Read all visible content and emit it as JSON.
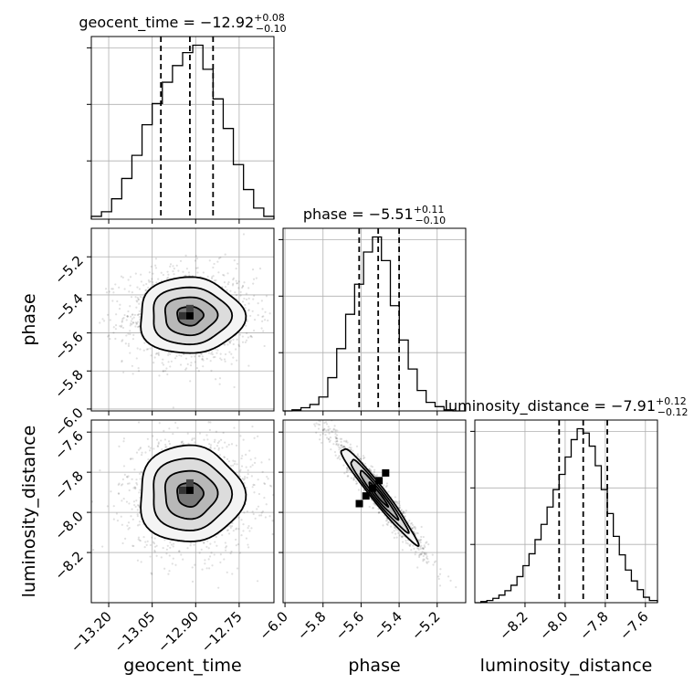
{
  "chart_data": {
    "type": "corner",
    "grid": true,
    "parameters": [
      {
        "key": "geocent_time",
        "label": "geocent_time",
        "title": {
          "prefix": "geocent_time = −12.92",
          "plus": "+0.08",
          "minus": "−0.10"
        },
        "range": [
          -13.26,
          -12.63
        ],
        "ticks": [
          -13.2,
          -13.05,
          -12.9,
          -12.75
        ],
        "tick_labels": [
          "−13.20",
          "−13.05",
          "−12.90",
          "−12.75"
        ],
        "quantiles": [
          -13.02,
          -12.92,
          -12.84
        ],
        "hist_edges": [
          -13.26,
          -13.225,
          -13.19,
          -13.155,
          -13.12,
          -13.085,
          -13.05,
          -13.015,
          -12.98,
          -12.945,
          -12.91,
          -12.875,
          -12.84,
          -12.805,
          -12.77,
          -12.735,
          -12.7,
          -12.665,
          -12.63
        ],
        "hist_counts": [
          3,
          8,
          22,
          44,
          69,
          102,
          125,
          148,
          166,
          180,
          188,
          162,
          130,
          98,
          59,
          32,
          12,
          3
        ]
      },
      {
        "key": "phase",
        "label": "phase",
        "title": {
          "prefix": "phase = −5.51",
          "plus": "+0.11",
          "minus": "−0.10"
        },
        "range": [
          -6.01,
          -5.05
        ],
        "ticks": [
          -6.0,
          -5.8,
          -5.6,
          -5.4,
          -5.2
        ],
        "tick_labels": [
          "−6.0",
          "−5.8",
          "−5.6",
          "−5.4",
          "−5.2"
        ],
        "quantiles": [
          -5.61,
          -5.51,
          -5.4
        ],
        "hist_edges": [
          -6.01,
          -5.963,
          -5.916,
          -5.869,
          -5.822,
          -5.775,
          -5.728,
          -5.681,
          -5.634,
          -5.587,
          -5.54,
          -5.493,
          -5.446,
          -5.399,
          -5.352,
          -5.305,
          -5.258,
          -5.211,
          -5.164,
          -5.117,
          -5.05
        ],
        "hist_counts": [
          0,
          1,
          3,
          6,
          13,
          31,
          58,
          90,
          118,
          148,
          162,
          140,
          98,
          66,
          39,
          19,
          8,
          4,
          1,
          0
        ]
      },
      {
        "key": "luminosity_distance",
        "label": "luminosity_distance",
        "title": {
          "prefix": "luminosity_distance = −7.91",
          "plus": "+0.12",
          "minus": "−0.12"
        },
        "range": [
          -8.45,
          -7.54
        ],
        "ticks": [
          -8.2,
          -8.0,
          -7.8,
          -7.6
        ],
        "tick_labels": [
          "−8.2",
          "−8.0",
          "−7.8",
          "−7.6"
        ],
        "quantiles": [
          -8.03,
          -7.91,
          -7.79
        ],
        "hist_edges": [
          -8.45,
          -8.42,
          -8.39,
          -8.36,
          -8.33,
          -8.3,
          -8.27,
          -8.24,
          -8.21,
          -8.18,
          -8.15,
          -8.12,
          -8.09,
          -8.06,
          -8.03,
          -8.0,
          -7.97,
          -7.94,
          -7.91,
          -7.88,
          -7.85,
          -7.82,
          -7.79,
          -7.76,
          -7.73,
          -7.7,
          -7.67,
          -7.64,
          -7.61,
          -7.58,
          -7.54
        ],
        "hist_counts": [
          0,
          1,
          2,
          4,
          7,
          11,
          16,
          24,
          34,
          45,
          58,
          72,
          88,
          104,
          118,
          134,
          150,
          160,
          156,
          144,
          126,
          104,
          82,
          61,
          44,
          30,
          20,
          12,
          5,
          2
        ]
      }
    ],
    "pairs": [
      {
        "x": "geocent_time",
        "y": "phase",
        "mean": [
          -12.92,
          -5.51
        ],
        "std": [
          0.09,
          0.1
        ],
        "corr": 0.0,
        "contour_levels_sigma": [
          0.5,
          1.0,
          1.5,
          2.0
        ],
        "peak": [
          -12.92,
          -5.51
        ]
      },
      {
        "x": "geocent_time",
        "y": "luminosity_distance",
        "mean": [
          -12.92,
          -7.91
        ],
        "std": [
          0.09,
          0.12
        ],
        "corr": 0.0,
        "contour_levels_sigma": [
          0.5,
          1.0,
          1.5,
          2.0
        ],
        "peak": [
          -12.92,
          -7.89
        ]
      },
      {
        "x": "phase",
        "y": "luminosity_distance",
        "mean": [
          -5.51,
          -7.91
        ],
        "std": [
          0.1,
          0.12
        ],
        "corr": -0.97,
        "contour_levels_sigma": [
          0.5,
          1.0,
          1.5,
          2.0
        ],
        "peak": [
          -5.54,
          -7.88
        ]
      }
    ]
  }
}
